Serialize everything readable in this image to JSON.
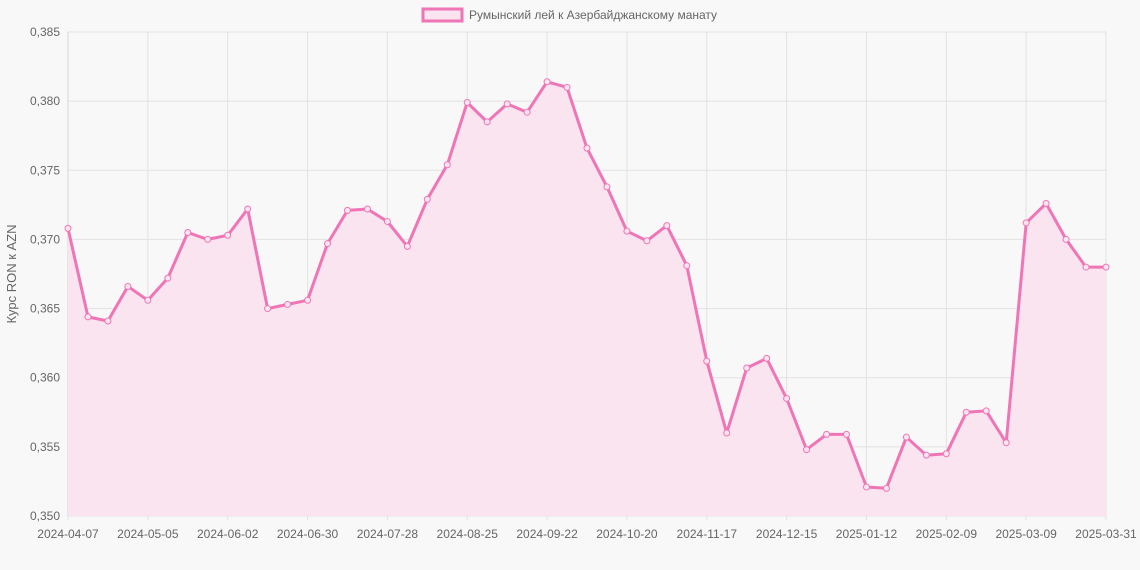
{
  "chart_data": {
    "type": "area",
    "ylabel": "Курс RON к AZN",
    "xlabel": "",
    "ylim": [
      0.35,
      0.385
    ],
    "y_ticks": [
      "0,350",
      "0,355",
      "0,360",
      "0,365",
      "0,370",
      "0,375",
      "0,380",
      "0,385"
    ],
    "x_ticks": [
      "2024-04-07",
      "2024-05-05",
      "2024-06-02",
      "2024-06-30",
      "2024-07-28",
      "2024-08-25",
      "2024-09-22",
      "2024-10-20",
      "2024-11-17",
      "2024-12-15",
      "2025-01-12",
      "2025-02-09",
      "2025-03-09",
      "2025-03-31"
    ],
    "grid": true,
    "legend_position": "top",
    "series": [
      {
        "name": "Румынский лей к Азербайджанскому манату",
        "color": "#f075b6",
        "fill": "#f9e4f0",
        "values": [
          0.3708,
          0.3644,
          0.3641,
          0.3666,
          0.3656,
          0.3672,
          0.3705,
          0.37,
          0.3703,
          0.3722,
          0.365,
          0.3653,
          0.3656,
          0.3697,
          0.3721,
          0.3722,
          0.3713,
          0.3695,
          0.3729,
          0.3754,
          0.3799,
          0.3785,
          0.3798,
          0.3792,
          0.3814,
          0.381,
          0.3766,
          0.3738,
          0.3706,
          0.3699,
          0.371,
          0.3681,
          0.3612,
          0.356,
          0.3607,
          0.3614,
          0.3585,
          0.3548,
          0.3559,
          0.3559,
          0.3521,
          0.352,
          0.3557,
          0.3544,
          0.3545,
          0.3575,
          0.3576,
          0.3553,
          0.3712,
          0.3726,
          0.37,
          0.368,
          0.368
        ]
      }
    ]
  }
}
